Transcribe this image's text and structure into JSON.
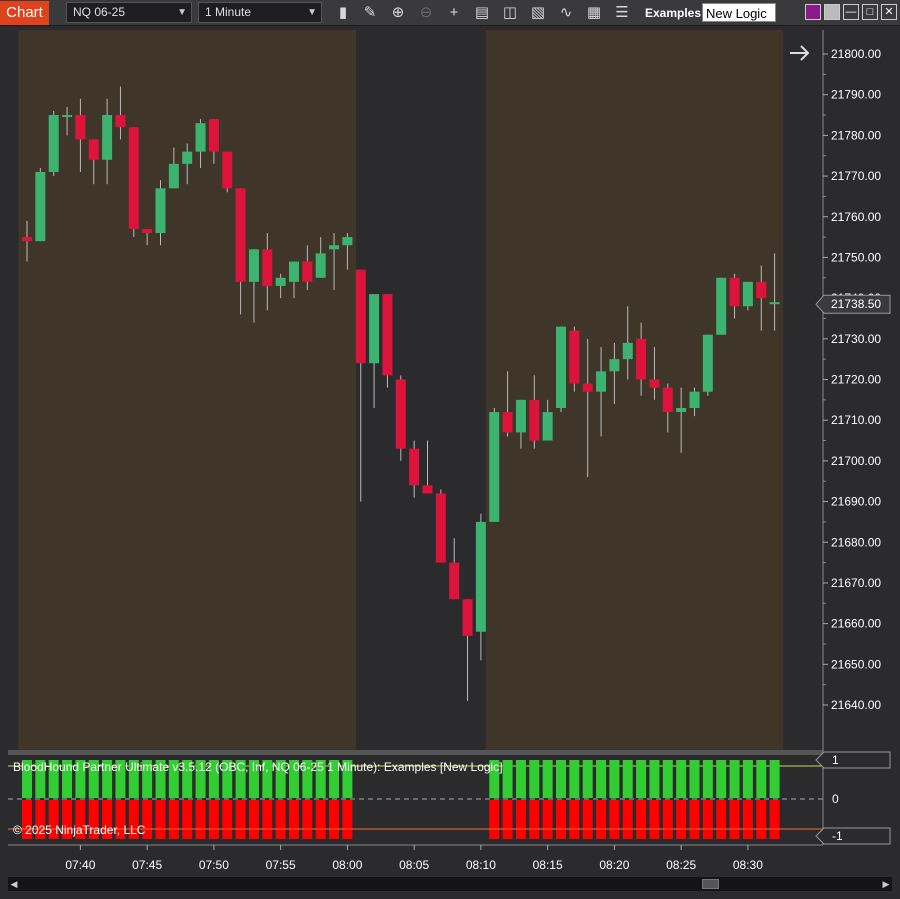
{
  "toolbar": {
    "chart_label": "Chart",
    "instrument": "NQ 06-25",
    "interval": "1 Minute",
    "tools": [
      "bar-type-icon",
      "pencil-icon",
      "zoom-in-icon",
      "zoom-out-icon",
      "crosshair-icon",
      "data-box-icon",
      "indicators-icon",
      "strategies-icon",
      "drawing-tools-icon",
      "properties-icon",
      "list-icon"
    ],
    "template_label": "Examples",
    "template_value": "New Logic"
  },
  "window_buttons": [
    "color-swatch-purple",
    "color-swatch-gray",
    "minimize-icon",
    "maximize-icon",
    "close-icon"
  ],
  "indicator": {
    "title": "BloodHound Partner Ultimate v3.5.12 (OBC, Inf, NQ 06-25 1 Minute): Examples  [New Logic]",
    "axis_labels": [
      "1",
      "0",
      "-1"
    ]
  },
  "copyright": "© 2025 NinjaTrader, LLC",
  "colors": {
    "up": "#3cb371",
    "down": "#dc143c",
    "session": "#3f3528",
    "background": "#2b2b2e",
    "signal_up": "#32cd32",
    "signal_down": "#ff0000"
  },
  "chart_data": {
    "type": "candlestick",
    "x_ticks": [
      "07:40",
      "07:45",
      "07:50",
      "07:55",
      "08:00",
      "08:05",
      "08:10",
      "08:15",
      "08:20",
      "08:25",
      "08:30"
    ],
    "y_ticks": [
      "21800.00",
      "21790.00",
      "21780.00",
      "21770.00",
      "21760.00",
      "21750.00",
      "21740.00",
      "21730.00",
      "21720.00",
      "21710.00",
      "21700.00",
      "21690.00",
      "21680.00",
      "21670.00",
      "21660.00",
      "21650.00",
      "21640.00"
    ],
    "ylim": [
      21635,
      21803
    ],
    "last_price": "21738.50",
    "candles": [
      {
        "o": 21755,
        "h": 21759,
        "l": 21749,
        "c": 21754
      },
      {
        "o": 21754,
        "h": 21772,
        "l": 21754,
        "c": 21771
      },
      {
        "o": 21771,
        "h": 21786,
        "l": 21770,
        "c": 21785
      },
      {
        "o": 21785,
        "h": 21787,
        "l": 21780,
        "c": 21785
      },
      {
        "o": 21785,
        "h": 21789,
        "l": 21771,
        "c": 21779
      },
      {
        "o": 21779,
        "h": 21779,
        "l": 21768,
        "c": 21774
      },
      {
        "o": 21774,
        "h": 21789,
        "l": 21768,
        "c": 21785
      },
      {
        "o": 21785,
        "h": 21792,
        "l": 21779,
        "c": 21782
      },
      {
        "o": 21782,
        "h": 21782,
        "l": 21755,
        "c": 21757
      },
      {
        "o": 21757,
        "h": 21757,
        "l": 21753,
        "c": 21756
      },
      {
        "o": 21756,
        "h": 21769,
        "l": 21753,
        "c": 21767
      },
      {
        "o": 21767,
        "h": 21777,
        "l": 21767,
        "c": 21773
      },
      {
        "o": 21773,
        "h": 21778,
        "l": 21768,
        "c": 21776
      },
      {
        "o": 21776,
        "h": 21784,
        "l": 21772,
        "c": 21783
      },
      {
        "o": 21784,
        "h": 21784,
        "l": 21773,
        "c": 21776
      },
      {
        "o": 21776,
        "h": 21776,
        "l": 21766,
        "c": 21767
      },
      {
        "o": 21767,
        "h": 21767,
        "l": 21736,
        "c": 21744
      },
      {
        "o": 21744,
        "h": 21752,
        "l": 21734,
        "c": 21752
      },
      {
        "o": 21752,
        "h": 21756,
        "l": 21737,
        "c": 21743
      },
      {
        "o": 21743,
        "h": 21746,
        "l": 21740,
        "c": 21745
      },
      {
        "o": 21744,
        "h": 21749,
        "l": 21740,
        "c": 21749
      },
      {
        "o": 21749,
        "h": 21753,
        "l": 21742,
        "c": 21744
      },
      {
        "o": 21745,
        "h": 21755,
        "l": 21745,
        "c": 21751
      },
      {
        "o": 21752,
        "h": 21756,
        "l": 21742,
        "c": 21753
      },
      {
        "o": 21753,
        "h": 21756,
        "l": 21747,
        "c": 21755
      },
      {
        "o": 21747,
        "h": 21747,
        "l": 21690,
        "c": 21724
      },
      {
        "o": 21724,
        "h": 21741,
        "l": 21713,
        "c": 21741
      },
      {
        "o": 21741,
        "h": 21741,
        "l": 21718,
        "c": 21721
      },
      {
        "o": 21720,
        "h": 21721,
        "l": 21700,
        "c": 21703
      },
      {
        "o": 21703,
        "h": 21705,
        "l": 21691,
        "c": 21694
      },
      {
        "o": 21694,
        "h": 21705,
        "l": 21692,
        "c": 21692
      },
      {
        "o": 21692,
        "h": 21693,
        "l": 21675,
        "c": 21675
      },
      {
        "o": 21675,
        "h": 21681,
        "l": 21666,
        "c": 21666
      },
      {
        "o": 21666,
        "h": 21666,
        "l": 21641,
        "c": 21657
      },
      {
        "o": 21658,
        "h": 21687,
        "l": 21651,
        "c": 21685
      },
      {
        "o": 21685,
        "h": 21713,
        "l": 21685,
        "c": 21712
      },
      {
        "o": 21712,
        "h": 21722,
        "l": 21706,
        "c": 21707
      },
      {
        "o": 21707,
        "h": 21715,
        "l": 21703,
        "c": 21715
      },
      {
        "o": 21715,
        "h": 21721,
        "l": 21703,
        "c": 21705
      },
      {
        "o": 21705,
        "h": 21715,
        "l": 21705,
        "c": 21712
      },
      {
        "o": 21713,
        "h": 21733,
        "l": 21712,
        "c": 21733
      },
      {
        "o": 21732,
        "h": 21733,
        "l": 21717,
        "c": 21719
      },
      {
        "o": 21719,
        "h": 21730,
        "l": 21696,
        "c": 21717
      },
      {
        "o": 21717,
        "h": 21728,
        "l": 21706,
        "c": 21722
      },
      {
        "o": 21722,
        "h": 21729,
        "l": 21714,
        "c": 21725
      },
      {
        "o": 21725,
        "h": 21738,
        "l": 21720,
        "c": 21729
      },
      {
        "o": 21730,
        "h": 21734,
        "l": 21716,
        "c": 21720
      },
      {
        "o": 21720,
        "h": 21728,
        "l": 21715,
        "c": 21718
      },
      {
        "o": 21718,
        "h": 21719,
        "l": 21707,
        "c": 21712
      },
      {
        "o": 21712,
        "h": 21718,
        "l": 21702,
        "c": 21713
      },
      {
        "o": 21713,
        "h": 21718,
        "l": 21711,
        "c": 21717
      },
      {
        "o": 21717,
        "h": 21731,
        "l": 21716,
        "c": 21731
      },
      {
        "o": 21731,
        "h": 21745,
        "l": 21731,
        "c": 21745
      },
      {
        "o": 21745,
        "h": 21746,
        "l": 21735,
        "c": 21738
      },
      {
        "o": 21738,
        "h": 21744,
        "l": 21737,
        "c": 21744
      },
      {
        "o": 21744,
        "h": 21748,
        "l": 21732,
        "c": 21740
      },
      {
        "o": 21739,
        "h": 21751,
        "l": 21732,
        "c": 21739
      }
    ],
    "sessions": [
      {
        "from": 0,
        "to": 24,
        "shaded": true
      },
      {
        "from": 25,
        "to": 34,
        "shaded": false
      },
      {
        "from": 35,
        "to": 56,
        "shaded": true
      }
    ],
    "signal": {
      "up_from": 35,
      "up_to": 56,
      "down_from": 0,
      "down_to": 24,
      "down2_from": 35,
      "down2_to": 56
    }
  }
}
